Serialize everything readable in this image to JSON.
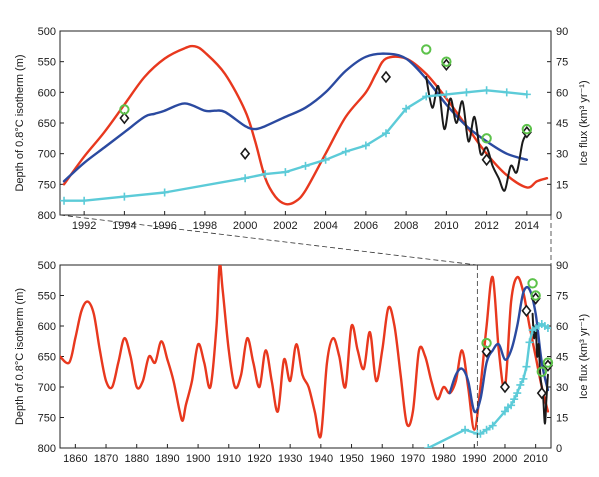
{
  "chart_data": [
    {
      "type": "line",
      "xlabel": "",
      "ylabel": "Depth of 0.8°C isotherm (m)",
      "y2label": "Ice flux (km³ yr⁻¹)",
      "xlim": [
        1990.8,
        2015.2
      ],
      "ylim": [
        800,
        500
      ],
      "y2lim": [
        0,
        90
      ],
      "x_ticks": [
        "1992",
        "1994",
        "1996",
        "1998",
        "2000",
        "2002",
        "2004",
        "2006",
        "2008",
        "2010",
        "2012",
        "2014"
      ],
      "y_ticks": [
        "500",
        "550",
        "600",
        "650",
        "700",
        "750",
        "800"
      ],
      "y2_ticks": [
        "0",
        "15",
        "30",
        "45",
        "60",
        "75",
        "90"
      ],
      "series": [
        {
          "color": "#e8381e",
          "axis": "left",
          "x": [
            1991,
            1992,
            1993,
            1994,
            1995,
            1996,
            1997,
            1997.5,
            1998,
            1999,
            2000,
            2000.5,
            2001,
            2001.5,
            2002,
            2002.5,
            2003,
            2004,
            2005,
            2006,
            2006.5,
            2007,
            2008,
            2009,
            2010,
            2011,
            2012,
            2013,
            2014,
            2014.5,
            2015
          ],
          "y": [
            750,
            705,
            665,
            620,
            575,
            545,
            528,
            525,
            535,
            570,
            630,
            680,
            740,
            770,
            782,
            778,
            760,
            700,
            640,
            600,
            570,
            545,
            545,
            570,
            610,
            655,
            700,
            735,
            755,
            745,
            740
          ]
        },
        {
          "color": "#2b4aa0",
          "axis": "left",
          "x": [
            1991,
            1992,
            1993,
            1994,
            1995,
            1995.5,
            1996,
            1997,
            1998,
            1998.5,
            1999,
            2000,
            2000.5,
            2001,
            2002,
            2003,
            2004,
            2005,
            2006,
            2007,
            2008,
            2009,
            2010,
            2011,
            2012,
            2013,
            2014
          ],
          "y": [
            745,
            715,
            690,
            665,
            640,
            635,
            630,
            618,
            630,
            630,
            632,
            655,
            660,
            655,
            640,
            625,
            600,
            565,
            542,
            537,
            545,
            578,
            620,
            655,
            680,
            700,
            710
          ]
        },
        {
          "color": "#1a1a1a",
          "axis": "left",
          "x": [
            2009,
            2009.3,
            2009.6,
            2009.9,
            2010.2,
            2010.5,
            2010.8,
            2011.1,
            2011.4,
            2011.7,
            2012,
            2012.3,
            2012.6,
            2012.9,
            2013.2,
            2013.5,
            2013.8,
            2014.1
          ],
          "y": [
            575,
            625,
            590,
            660,
            610,
            650,
            615,
            680,
            640,
            700,
            690,
            720,
            740,
            760,
            720,
            730,
            680,
            665
          ]
        },
        {
          "color": "#5ccbd8",
          "axis": "right",
          "x": [
            1991,
            1992,
            1994,
            1996,
            2000,
            2001,
            2002,
            2003,
            2004,
            2005,
            2006,
            2007,
            2008,
            2009,
            2010,
            2011,
            2012,
            2013,
            2014
          ],
          "y": [
            7,
            7,
            9,
            11,
            18,
            20,
            21,
            24,
            27,
            31,
            34,
            40,
            52,
            58,
            59,
            60,
            61,
            60,
            59
          ]
        }
      ],
      "markers": {
        "diamonds": {
          "color": "#1a1a1a",
          "x": [
            1994,
            2000,
            2007,
            2010,
            2012,
            2014
          ],
          "y": [
            642,
            700,
            575,
            555,
            710,
            665
          ]
        },
        "circles": {
          "color": "#5cc24a",
          "x": [
            1994,
            2009,
            2010,
            2012,
            2014
          ],
          "y": [
            628,
            530,
            550,
            675,
            660
          ]
        }
      }
    },
    {
      "type": "line",
      "xlabel": "",
      "ylabel": "Depth of 0.8°C isotherm (m)",
      "y2label": "Ice flux (km³ yr⁻¹)",
      "xlim": [
        1855,
        2015
      ],
      "ylim": [
        800,
        500
      ],
      "y2lim": [
        0,
        90
      ],
      "x_ticks": [
        "1860",
        "1870",
        "1880",
        "1890",
        "1900",
        "1910",
        "1920",
        "1930",
        "1940",
        "1950",
        "1960",
        "1970",
        "1980",
        "1990",
        "2000",
        "2010"
      ],
      "y_ticks": [
        "500",
        "550",
        "600",
        "650",
        "700",
        "750",
        "800"
      ],
      "y2_ticks": [
        "0",
        "15",
        "30",
        "45",
        "60",
        "75",
        "90"
      ],
      "series": [
        {
          "color": "#e8381e",
          "axis": "left",
          "x": [
            1855,
            1858,
            1860,
            1862,
            1864,
            1866,
            1868,
            1870,
            1872,
            1874,
            1876,
            1878,
            1880,
            1882,
            1884,
            1886,
            1888,
            1890,
            1892,
            1894,
            1895,
            1896,
            1898,
            1900,
            1902,
            1904,
            1906,
            1907,
            1908,
            1910,
            1912,
            1914,
            1916,
            1918,
            1920,
            1922,
            1924,
            1926,
            1928,
            1930,
            1932,
            1934,
            1936,
            1938,
            1940,
            1942,
            1944,
            1946,
            1948,
            1950,
            1952,
            1954,
            1956,
            1958,
            1960,
            1962,
            1964,
            1966,
            1968,
            1970,
            1972,
            1974,
            1976,
            1978,
            1980,
            1982,
            1984,
            1986,
            1988,
            1990,
            1992,
            1994,
            1996,
            1998,
            2000,
            2002,
            2004,
            2006,
            2008,
            2010,
            2012,
            2014
          ],
          "y": [
            650,
            660,
            620,
            575,
            560,
            580,
            640,
            690,
            700,
            660,
            620,
            650,
            700,
            690,
            650,
            660,
            625,
            655,
            690,
            740,
            755,
            730,
            690,
            630,
            660,
            700,
            600,
            500,
            540,
            640,
            700,
            680,
            620,
            660,
            700,
            640,
            690,
            740,
            655,
            690,
            630,
            680,
            700,
            740,
            780,
            660,
            620,
            650,
            700,
            600,
            640,
            670,
            610,
            690,
            640,
            570,
            600,
            680,
            760,
            740,
            640,
            650,
            690,
            720,
            700,
            710,
            690,
            640,
            700,
            770,
            700,
            600,
            520,
            640,
            700,
            560,
            520,
            545,
            600,
            650,
            700,
            740
          ]
        },
        {
          "color": "#2b4aa0",
          "axis": "left",
          "x": [
            1982,
            1984,
            1986,
            1988,
            1990,
            1992,
            1994,
            1996,
            1998,
            2000,
            2002,
            2004,
            2006,
            2008,
            2010,
            2012,
            2014
          ],
          "y": [
            710,
            680,
            670,
            690,
            740,
            720,
            660,
            640,
            630,
            655,
            640,
            600,
            545,
            540,
            580,
            660,
            705
          ]
        },
        {
          "color": "#1a1a1a",
          "axis": "left",
          "x": [
            2009,
            2009.5,
            2010,
            2010.5,
            2011,
            2011.5,
            2012,
            2012.5,
            2013,
            2013.5,
            2014
          ],
          "y": [
            580,
            620,
            600,
            650,
            630,
            680,
            700,
            720,
            760,
            720,
            680
          ]
        },
        {
          "color": "#5ccbd8",
          "axis": "right",
          "x": [
            1975,
            1987,
            1991,
            1992,
            1994,
            1996,
            2000,
            2001,
            2002,
            2003,
            2004,
            2005,
            2006,
            2007,
            2008,
            2009,
            2010,
            2011,
            2012,
            2013,
            2014
          ],
          "y": [
            0,
            9,
            7,
            7,
            9,
            11,
            18,
            20,
            21,
            24,
            27,
            31,
            34,
            40,
            52,
            58,
            59,
            60,
            61,
            60,
            59
          ]
        }
      ],
      "markers": {
        "diamonds": {
          "color": "#1a1a1a",
          "x": [
            1994,
            2000,
            2007,
            2010,
            2012,
            2014
          ],
          "y": [
            642,
            700,
            575,
            555,
            710,
            665
          ]
        },
        "circles": {
          "color": "#5cc24a",
          "x": [
            1994,
            2009,
            2010,
            2012,
            2014
          ],
          "y": [
            628,
            530,
            550,
            675,
            660
          ]
        }
      }
    }
  ]
}
